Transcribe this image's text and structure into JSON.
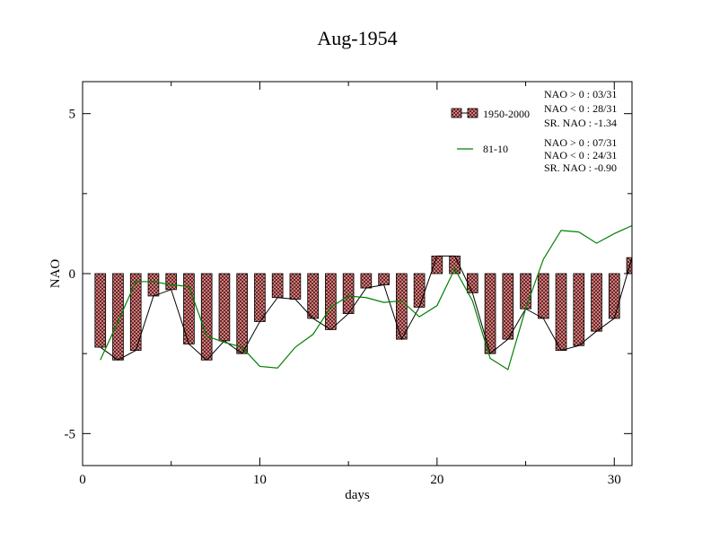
{
  "chart_data": {
    "type": "bar",
    "title": "Aug-1954",
    "xlabel": "days",
    "ylabel": "NAO",
    "xlim": [
      0,
      31
    ],
    "ylim": [
      -6,
      6
    ],
    "x_ticks": [
      0,
      10,
      20,
      30
    ],
    "x_tick_labels": [
      "0",
      "10",
      "20",
      "30"
    ],
    "y_ticks": [
      5,
      0,
      -5
    ],
    "y_tick_labels": [
      "5",
      "0",
      "-5"
    ],
    "grid": false,
    "legend_position": "top-right",
    "colors": {
      "bar_fill": "#f08080",
      "bar_hatch": "#000000",
      "line_black": "#000000",
      "line_green": "#008000"
    },
    "x": [
      1,
      2,
      3,
      4,
      5,
      6,
      7,
      8,
      9,
      10,
      11,
      12,
      13,
      14,
      15,
      16,
      17,
      18,
      19,
      20,
      21,
      22,
      23,
      24,
      25,
      26,
      27,
      28,
      29,
      30,
      31
    ],
    "series": [
      {
        "name": "1950-2000",
        "type": "bar",
        "values": [
          -2.3,
          -2.7,
          -2.4,
          -0.7,
          -0.5,
          -2.2,
          -2.7,
          -2.1,
          -2.5,
          -1.5,
          -0.75,
          -0.8,
          -1.4,
          -1.75,
          -1.25,
          -0.45,
          -0.35,
          -2.05,
          -1.05,
          0.55,
          0.55,
          -0.6,
          -2.5,
          -2.05,
          -1.1,
          -1.4,
          -2.4,
          -2.25,
          -1.8,
          -1.4,
          0.5
        ]
      },
      {
        "name": "81-10",
        "type": "line",
        "values": [
          -2.7,
          -1.5,
          -0.25,
          -0.25,
          -0.35,
          -0.4,
          -1.95,
          -2.15,
          -2.3,
          -2.9,
          -2.95,
          -2.3,
          -1.9,
          -1.05,
          -0.7,
          -0.75,
          -0.9,
          -0.85,
          -1.35,
          -1.0,
          0.15,
          -0.85,
          -2.65,
          -3.0,
          -1.1,
          0.45,
          1.35,
          1.3,
          0.95,
          1.25,
          1.5
        ]
      }
    ],
    "annotations": {
      "set1": [
        "NAO > 0 : 03/31",
        "NAO < 0 : 28/31",
        "SR. NAO : -1.34"
      ],
      "set2": [
        "NAO > 0 : 07/31",
        "NAO < 0 : 24/31",
        "SR. NAO : -0.90"
      ]
    }
  }
}
